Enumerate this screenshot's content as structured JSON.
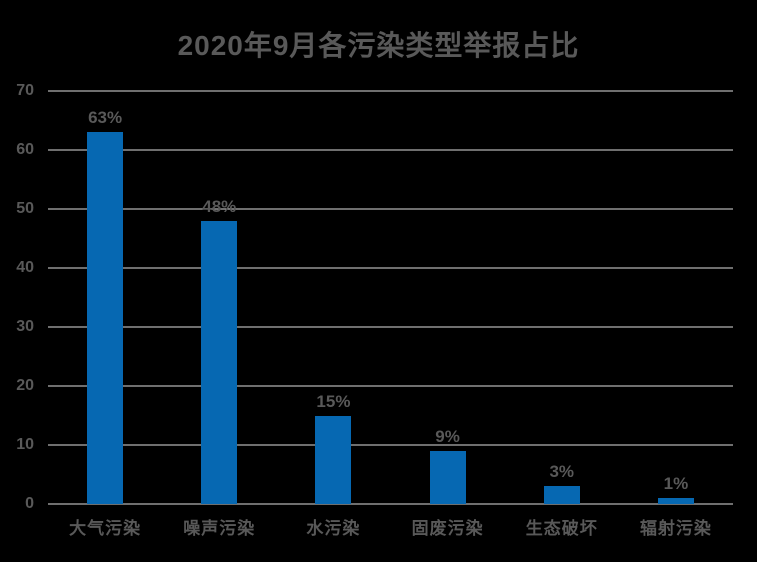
{
  "title": "2020年9月各污染类型举报占比",
  "colors": {
    "background": "#000000",
    "bar": "#0668B2",
    "text": "#595959",
    "gridline": "#DEDEDE"
  },
  "chart_data": {
    "type": "bar",
    "title": "2020年9月各污染类型举报占比",
    "categories": [
      "大气污染",
      "噪声污染",
      "水污染",
      "固废污染",
      "生态破坏",
      "辐射污染"
    ],
    "values": [
      63,
      48,
      15,
      9,
      3,
      1
    ],
    "data_labels": [
      "63%",
      "48%",
      "15%",
      "9%",
      "3%",
      "1%"
    ],
    "xlabel": "",
    "ylabel": "",
    "ylim": [
      0,
      70
    ],
    "y_ticks": [
      0,
      10,
      20,
      30,
      40,
      50,
      60,
      70
    ],
    "grid": "horizontal-only",
    "legend": "none",
    "data_label_suffix": "%"
  }
}
